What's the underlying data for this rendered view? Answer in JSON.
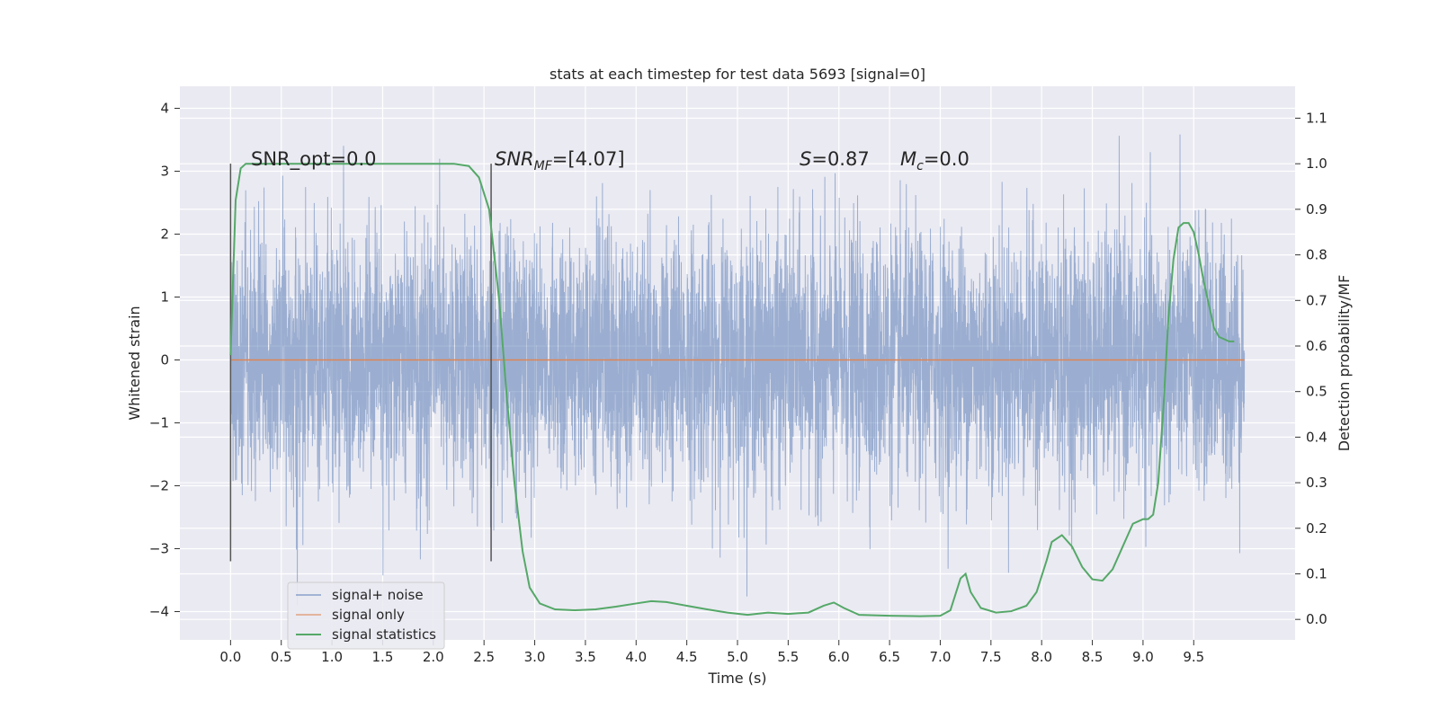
{
  "chart_data": {
    "type": "line",
    "title": "stats at each timestep for test data 5693 [signal=0]",
    "xlabel": "Time (s)",
    "ylabel": "Whitened strain",
    "y2label": "Detection probability/MF",
    "xlim": [
      -0.5,
      10.5
    ],
    "ylim": [
      -4.45,
      4.35
    ],
    "y2lim": [
      -0.045,
      1.17
    ],
    "xticks": [
      "0.0",
      "0.5",
      "1.0",
      "1.5",
      "2.0",
      "2.5",
      "3.0",
      "3.5",
      "4.0",
      "4.5",
      "5.0",
      "5.5",
      "6.0",
      "6.5",
      "7.0",
      "7.5",
      "8.0",
      "8.5",
      "9.0",
      "9.5"
    ],
    "yticks": [
      "4",
      "3",
      "2",
      "1",
      "0",
      "−1",
      "−2",
      "−3",
      "−4"
    ],
    "y2ticks": [
      "1.1",
      "1.0",
      "0.9",
      "0.8",
      "0.7",
      "0.6",
      "0.5",
      "0.4",
      "0.3",
      "0.2",
      "0.1",
      "0.0"
    ],
    "grid": true,
    "legend_position": "lower-left",
    "colors": {
      "noise": "#4c72b0",
      "signal_only": "#dd8452",
      "statistics": "#55a868",
      "background": "#eaeaf2",
      "grid": "#ffffff",
      "vline": "#555555"
    },
    "series": [
      {
        "name": "signal+ noise",
        "axis": "left",
        "style": "dense-noise",
        "x_range": [
          0.0,
          10.0
        ],
        "typical_envelope": [
          -1.9,
          1.9
        ],
        "peak_range": [
          -3.9,
          4.0
        ]
      },
      {
        "name": "signal only",
        "axis": "left",
        "x": [
          0.0,
          10.0
        ],
        "y": [
          0.0,
          0.0
        ]
      },
      {
        "name": "signal statistics",
        "axis": "right",
        "x": [
          0.0,
          0.05,
          0.1,
          0.15,
          0.2,
          0.3,
          0.5,
          1.0,
          1.5,
          2.0,
          2.2,
          2.35,
          2.45,
          2.55,
          2.65,
          2.72,
          2.8,
          2.88,
          2.95,
          3.05,
          3.2,
          3.4,
          3.6,
          3.8,
          4.0,
          4.15,
          4.3,
          4.5,
          4.7,
          4.9,
          5.1,
          5.3,
          5.5,
          5.7,
          5.85,
          5.95,
          6.05,
          6.2,
          6.5,
          6.8,
          7.0,
          7.1,
          7.2,
          7.25,
          7.3,
          7.4,
          7.55,
          7.7,
          7.85,
          7.95,
          8.05,
          8.1,
          8.2,
          8.3,
          8.4,
          8.5,
          8.6,
          8.7,
          8.8,
          8.9,
          9.0,
          9.05,
          9.1,
          9.15,
          9.2,
          9.25,
          9.3,
          9.35,
          9.4,
          9.45,
          9.5,
          9.55,
          9.6,
          9.65,
          9.7,
          9.75,
          9.8,
          9.85,
          9.9
        ],
        "y": [
          0.58,
          0.92,
          0.99,
          1.0,
          1.0,
          1.0,
          1.0,
          1.0,
          1.0,
          1.0,
          1.0,
          0.995,
          0.97,
          0.9,
          0.7,
          0.5,
          0.3,
          0.15,
          0.07,
          0.035,
          0.022,
          0.02,
          0.022,
          0.028,
          0.035,
          0.04,
          0.038,
          0.03,
          0.022,
          0.015,
          0.01,
          0.015,
          0.012,
          0.015,
          0.03,
          0.037,
          0.025,
          0.01,
          0.008,
          0.007,
          0.008,
          0.02,
          0.09,
          0.1,
          0.06,
          0.025,
          0.015,
          0.018,
          0.03,
          0.06,
          0.13,
          0.17,
          0.185,
          0.16,
          0.115,
          0.088,
          0.085,
          0.11,
          0.16,
          0.21,
          0.22,
          0.22,
          0.23,
          0.3,
          0.46,
          0.66,
          0.79,
          0.86,
          0.87,
          0.87,
          0.85,
          0.8,
          0.74,
          0.69,
          0.64,
          0.62,
          0.615,
          0.61,
          0.61
        ]
      }
    ],
    "vlines": [
      0.0,
      2.57
    ],
    "annotations": [
      {
        "id": "snr-opt",
        "text": "SNR_opt=0.0",
        "x": 0.2
      },
      {
        "id": "snr-mf",
        "text": "SNRMF=[4.07]",
        "x": 2.6
      },
      {
        "id": "s",
        "text": "S=0.87",
        "x": 5.6
      },
      {
        "id": "mc",
        "text": "Mc=0.0",
        "x": 6.6
      }
    ]
  }
}
